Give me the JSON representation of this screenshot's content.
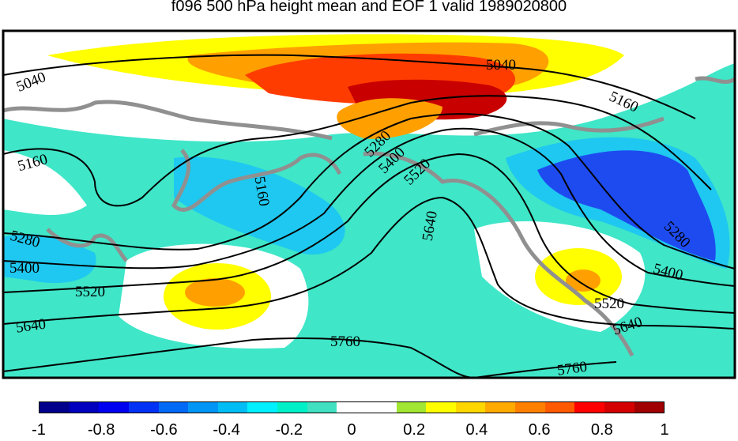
{
  "title": "f096 500 hPa height mean and EOF 1 valid 1989020800",
  "colorbar": {
    "colors": [
      "#00008c",
      "#0000be",
      "#0000f0",
      "#0032f5",
      "#0069f5",
      "#0096f5",
      "#00bef5",
      "#00f0ff",
      "#00f0c8",
      "#40e0c0",
      "#ffffff",
      "#ffffff",
      "#a0e632",
      "#ffff00",
      "#ffd700",
      "#ffaa00",
      "#ff8000",
      "#ff5a00",
      "#ff0000",
      "#d40000",
      "#a00000"
    ],
    "tick_labels": [
      "-1",
      "-0.8",
      "-0.6",
      "-0.4",
      "-0.2",
      "0",
      "0.2",
      "0.4",
      "0.6",
      "0.8",
      "1"
    ]
  },
  "contour_labels": [
    "5040",
    "5040",
    "5160",
    "5160",
    "5160",
    "5280",
    "5280",
    "5280",
    "5400",
    "5400",
    "5400",
    "5520",
    "5520",
    "5520",
    "5640",
    "5640",
    "5640",
    "5760",
    "5760"
  ],
  "colors": {
    "teal": "#3fe6c8",
    "cyan": "#1ec8f0",
    "blue": "#1e82f0",
    "dark_blue": "#1e4bf0",
    "yellow": "#ffff00",
    "orange_light": "#ffa000",
    "orange": "#ff7800",
    "red": "#ff3c00",
    "dark_red": "#c80000",
    "coast": "#909090"
  }
}
